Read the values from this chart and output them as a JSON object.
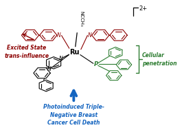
{
  "title": "",
  "background": "#ffffff",
  "charge_label": "2+",
  "red_color": "#8B0000",
  "green_color": "#2E7D32",
  "blue_color": "#1565C0",
  "black_color": "#000000",
  "annotation_excited": "Excited State\ntrans-influence",
  "annotation_cellular": "Cellular\npenetration",
  "annotation_photo": "Photoinduced Triple-\nNegative Breast\nCancer Cell Death",
  "ncch3_label": "NCCH₃",
  "ru_label": "Ru",
  "p_label": "P"
}
